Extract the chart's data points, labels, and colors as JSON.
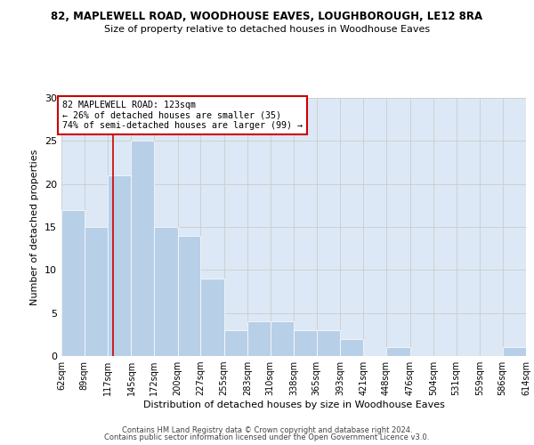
{
  "title": "82, MAPLEWELL ROAD, WOODHOUSE EAVES, LOUGHBOROUGH, LE12 8RA",
  "subtitle": "Size of property relative to detached houses in Woodhouse Eaves",
  "xlabel": "Distribution of detached houses by size in Woodhouse Eaves",
  "ylabel": "Number of detached properties",
  "bin_edges": [
    62,
    89,
    117,
    145,
    172,
    200,
    227,
    255,
    283,
    310,
    338,
    365,
    393,
    421,
    448,
    476,
    504,
    531,
    559,
    586,
    614
  ],
  "bar_heights": [
    17,
    15,
    21,
    25,
    15,
    14,
    9,
    3,
    4,
    4,
    3,
    3,
    2,
    0,
    1,
    0,
    0,
    0,
    0,
    1
  ],
  "bar_color": "#b8cfe8",
  "bar_edge_color": "#ffffff",
  "grid_color": "#cccccc",
  "vline_x": 123,
  "vline_color": "#cc0000",
  "annotation_title": "82 MAPLEWELL ROAD: 123sqm",
  "annotation_line1": "← 26% of detached houses are smaller (35)",
  "annotation_line2": "74% of semi-detached houses are larger (99) →",
  "annotation_box_color": "#ffffff",
  "annotation_box_edge": "#cc0000",
  "ylim": [
    0,
    30
  ],
  "yticks": [
    0,
    5,
    10,
    15,
    20,
    25,
    30
  ],
  "footer1": "Contains HM Land Registry data © Crown copyright and database right 2024.",
  "footer2": "Contains public sector information licensed under the Open Government Licence v3.0.",
  "background_color": "#dce8f5"
}
